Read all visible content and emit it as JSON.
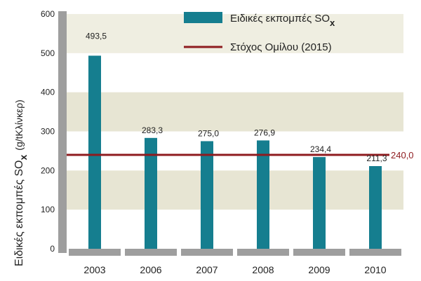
{
  "chart_data": {
    "type": "bar",
    "categories": [
      "2003",
      "2006",
      "2007",
      "2008",
      "2009",
      "2010"
    ],
    "series": [
      {
        "name": "Ειδικές εκπομπές SO",
        "name_subscript": "x",
        "values": [
          493.5,
          283.3,
          275.0,
          276.9,
          234.4,
          211.3
        ],
        "value_labels": [
          "493,5",
          "283,3",
          "275,0",
          "276,9",
          "234,4",
          "211,3"
        ],
        "color": "#157e8f"
      }
    ],
    "target": {
      "name": "Στόχος Ομίλου (2015)",
      "value": 240.0,
      "value_label": "240,0",
      "color": "#8e1b1f"
    },
    "ylabel": "Ειδικές εκπομπές SO",
    "ylabel_subscript": "x",
    "ylabel_unit": "(g/tΚλίνκερ)",
    "yticks": [
      "0",
      "100",
      "200",
      "300",
      "400",
      "500",
      "600"
    ],
    "ylim": [
      0,
      600
    ],
    "grid": false,
    "legend_position": "top-right",
    "bands": [
      {
        "from": 500,
        "to": 600,
        "color": "#efeee1"
      },
      {
        "from": 300,
        "to": 400,
        "color": "#e7e5d3"
      },
      {
        "from": 100,
        "to": 200,
        "color": "#e7e5d3"
      }
    ],
    "axis_color": "#9e9e9e"
  }
}
